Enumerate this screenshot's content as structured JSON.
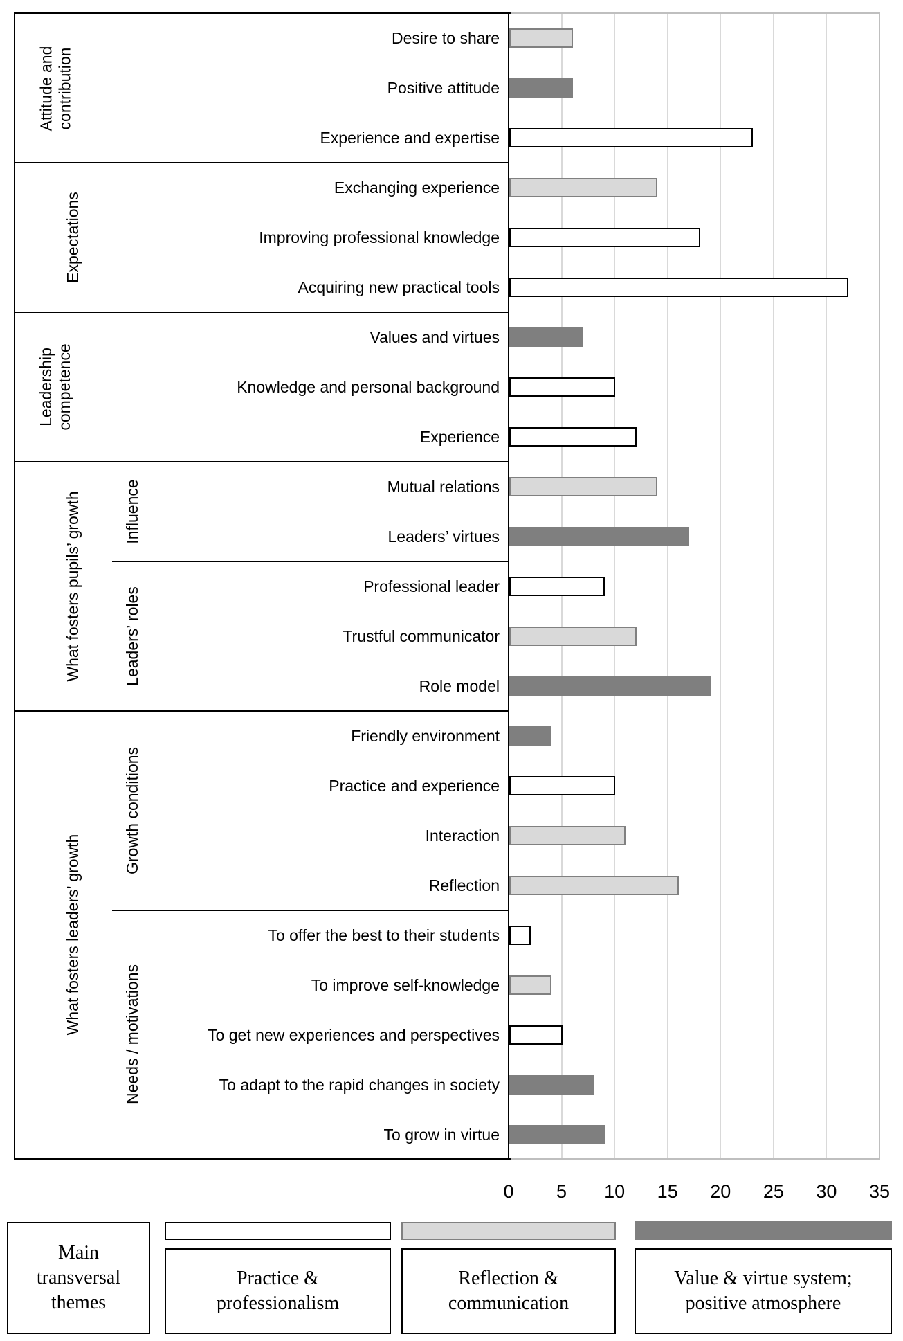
{
  "chart_data": {
    "type": "bar",
    "orientation": "horizontal",
    "title": "",
    "xlabel": "",
    "ylabel": "",
    "xlim": [
      0,
      35
    ],
    "x_ticks": [
      0,
      5,
      10,
      15,
      20,
      25,
      30,
      35
    ],
    "grid": "vertical, every 5 units",
    "legend_position": "bottom",
    "themes": [
      {
        "id": "practice",
        "label": "Practice & professionalism",
        "fill": "#ffffff",
        "border": "#000000"
      },
      {
        "id": "reflection",
        "label": "Reflection & communication",
        "fill": "#d9d9d9",
        "border": "#808080"
      },
      {
        "id": "value",
        "label": "Value & virtue system; positive atmosphere",
        "fill": "#7f7f7f",
        "border": "#7f7f7f"
      }
    ],
    "groups": [
      {
        "label": "Attitude and contribution",
        "label_lines": "Attitude and\ncontribution",
        "subgroups": [
          {
            "label": "",
            "items": [
              {
                "label": "Desire to share",
                "value": 6,
                "theme": "reflection"
              },
              {
                "label": "Positive attitude",
                "value": 6,
                "theme": "value"
              },
              {
                "label": "Experience and expertise",
                "value": 23,
                "theme": "practice"
              }
            ]
          }
        ]
      },
      {
        "label": "Expectations",
        "label_lines": "Expectations",
        "subgroups": [
          {
            "label": "",
            "items": [
              {
                "label": "Exchanging experience",
                "value": 14,
                "theme": "reflection"
              },
              {
                "label": "Improving professional knowledge",
                "value": 18,
                "theme": "practice"
              },
              {
                "label": "Acquiring new practical tools",
                "value": 32,
                "theme": "practice"
              }
            ]
          }
        ]
      },
      {
        "label": "Leadership competence",
        "label_lines": "Leadership\ncompetence",
        "subgroups": [
          {
            "label": "",
            "items": [
              {
                "label": "Values and virtues",
                "value": 7,
                "theme": "value"
              },
              {
                "label": "Knowledge and personal background",
                "value": 10,
                "theme": "practice"
              },
              {
                "label": "Experience",
                "value": 12,
                "theme": "practice"
              }
            ]
          }
        ]
      },
      {
        "label": "What fosters pupils’ growth",
        "label_lines": "What fosters pupils’ growth",
        "subgroups": [
          {
            "label": "Influence",
            "items": [
              {
                "label": "Mutual relations",
                "value": 14,
                "theme": "reflection"
              },
              {
                "label": "Leaders’ virtues",
                "value": 17,
                "theme": "value"
              }
            ]
          },
          {
            "label": "Leaders’ roles",
            "items": [
              {
                "label": "Professional leader",
                "value": 9,
                "theme": "practice"
              },
              {
                "label": "Trustful communicator",
                "value": 12,
                "theme": "reflection"
              },
              {
                "label": "Role model",
                "value": 19,
                "theme": "value"
              }
            ]
          }
        ]
      },
      {
        "label": "What fosters leaders’ growth",
        "label_lines": "What fosters leaders’ growth",
        "subgroups": [
          {
            "label": "Growth conditions",
            "items": [
              {
                "label": "Friendly environment",
                "value": 4,
                "theme": "value"
              },
              {
                "label": "Practice and experience",
                "value": 10,
                "theme": "practice"
              },
              {
                "label": "Interaction",
                "value": 11,
                "theme": "reflection"
              },
              {
                "label": "Reflection",
                "value": 16,
                "theme": "reflection"
              }
            ]
          },
          {
            "label": "Needs / motivations",
            "items": [
              {
                "label": "To offer the best to their students",
                "value": 2,
                "theme": "practice"
              },
              {
                "label": "To improve self-knowledge",
                "value": 4,
                "theme": "reflection"
              },
              {
                "label": "To get new experiences and perspectives",
                "value": 5,
                "theme": "practice"
              },
              {
                "label": "To adapt to the rapid changes in society",
                "value": 8,
                "theme": "value"
              },
              {
                "label": "To grow in virtue",
                "value": 9,
                "theme": "value"
              }
            ]
          }
        ]
      }
    ]
  },
  "legend": {
    "main_box": {
      "label": "Main transversal themes"
    },
    "entries": [
      {
        "label": "Practice & professionalism",
        "theme": "practice"
      },
      {
        "label": "Reflection & communication",
        "theme": "reflection"
      },
      {
        "label": "Value & virtue system; positive atmosphere",
        "theme": "value"
      }
    ]
  },
  "colors": {
    "grid_line": "#d9d9d9",
    "plot_border": "#bfbfbf",
    "table_border": "#000000",
    "bar_white": "#ffffff",
    "bar_light_gray": "#d9d9d9",
    "bar_dark_gray": "#7f7f7f",
    "light_bar_border": "#808080"
  }
}
